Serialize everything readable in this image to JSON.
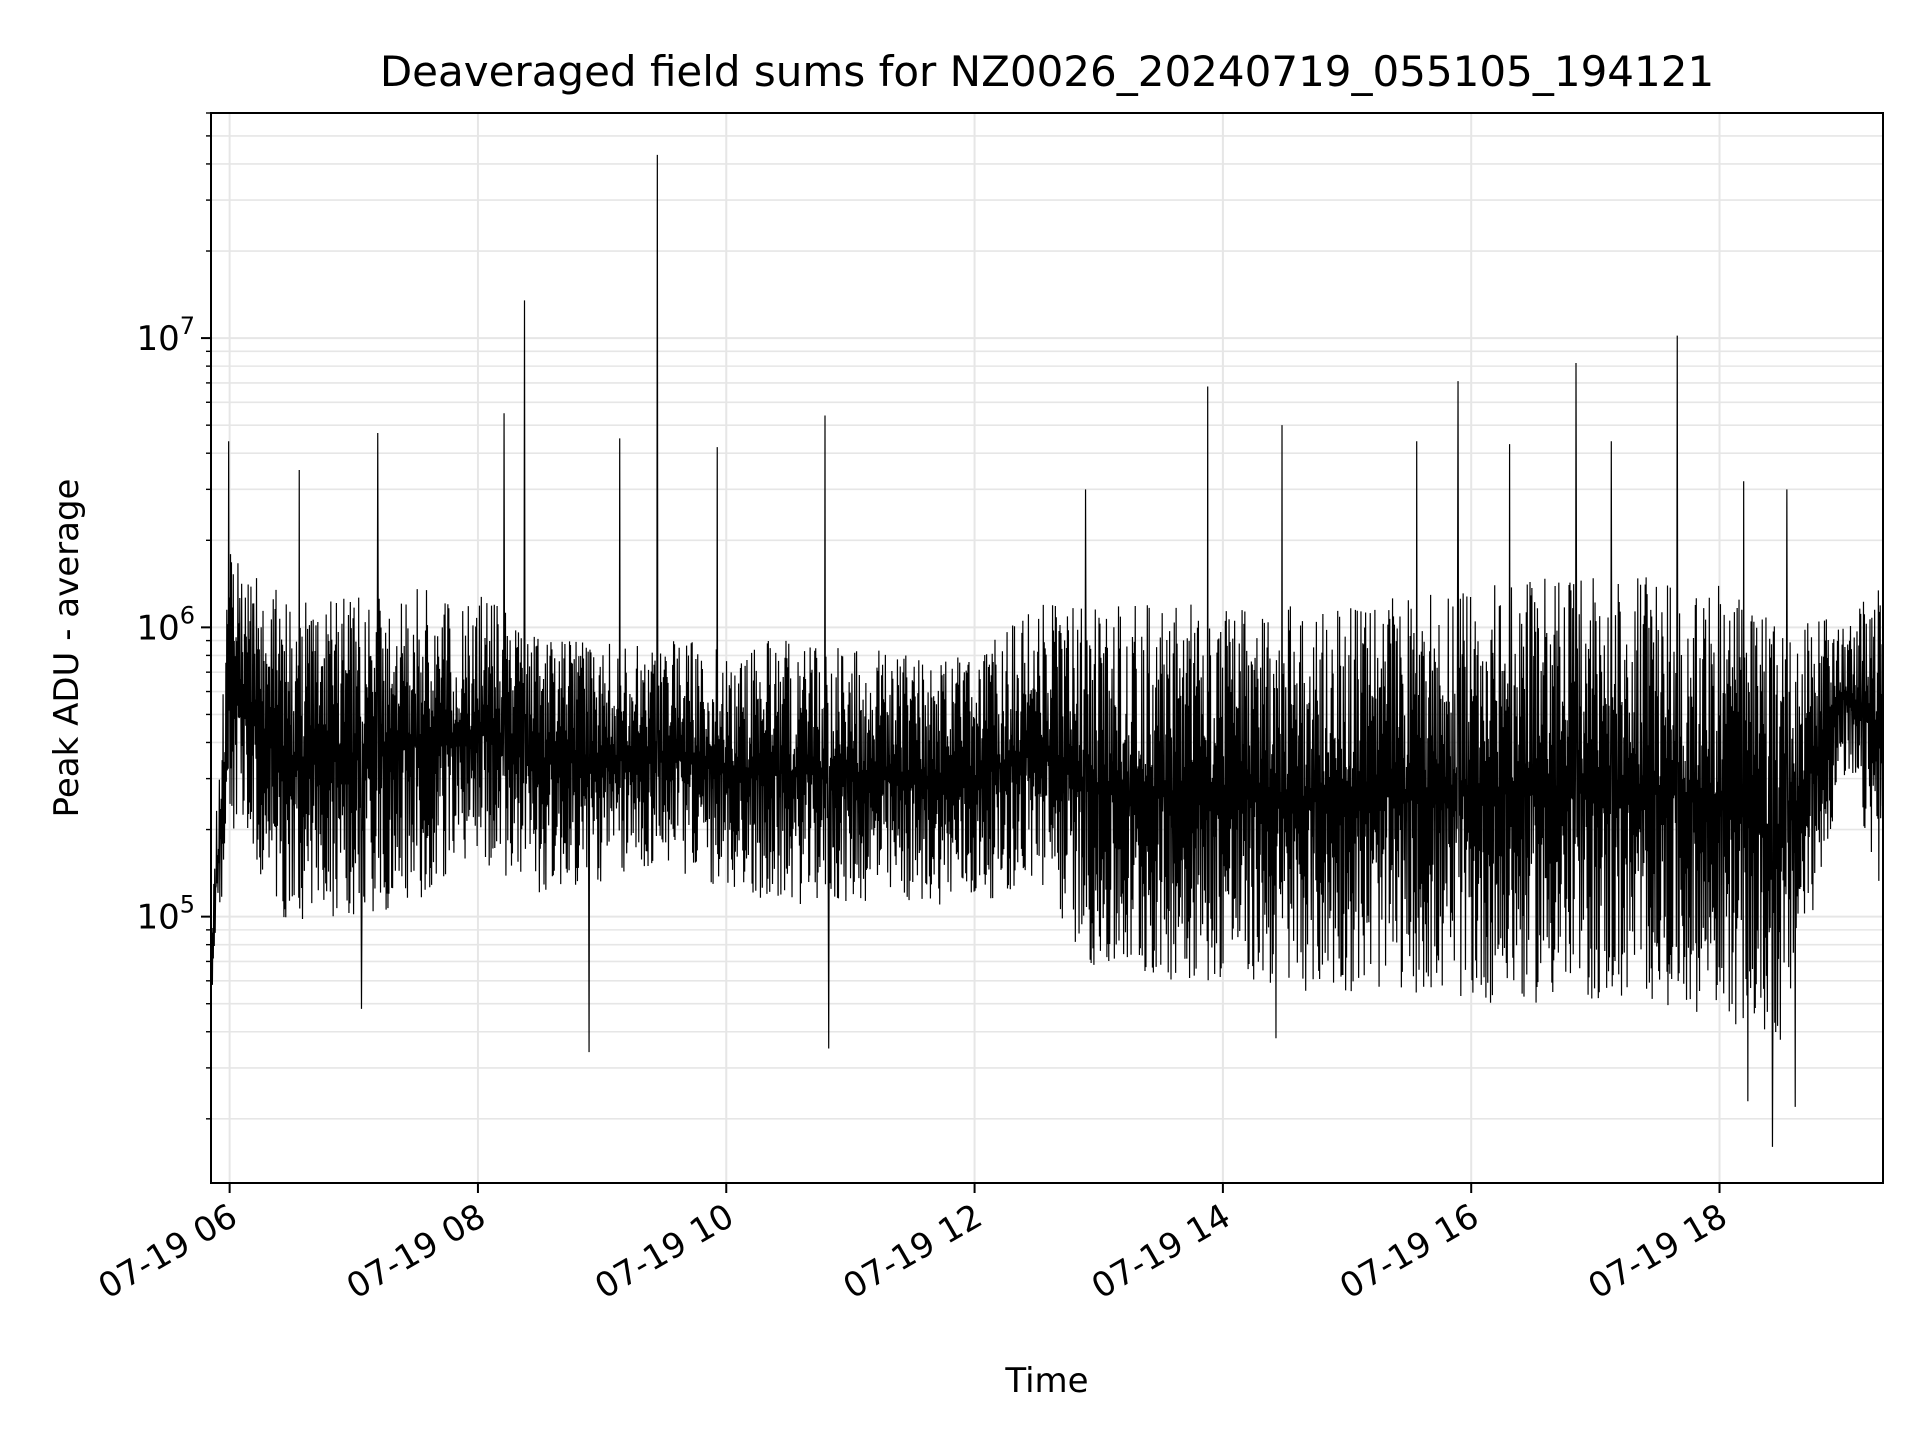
{
  "chart_data": {
    "type": "line",
    "title": "Deaveraged field sums for NZ0026_20240719_055105_194121",
    "xlabel": "Time",
    "ylabel": "Peak ADU - average",
    "yscale": "log",
    "ylim": [
      12000,
      60000000
    ],
    "xlim": [
      "2024-07-19 05:51",
      "2024-07-19 19:19"
    ],
    "grid": true,
    "line_color": "#000000",
    "x_ticks": [
      "07-19 06",
      "07-19 08",
      "07-19 10",
      "07-19 12",
      "07-19 14",
      "07-19 16",
      "07-19 18"
    ],
    "x_tick_values": [
      "2024-07-19 06:00",
      "2024-07-19 08:00",
      "2024-07-19 10:00",
      "2024-07-19 12:00",
      "2024-07-19 14:00",
      "2024-07-19 16:00",
      "2024-07-19 18:00"
    ],
    "y_ticks": [
      {
        "base": "10",
        "exp": "5",
        "value": 100000
      },
      {
        "base": "10",
        "exp": "6",
        "value": 1000000
      },
      {
        "base": "10",
        "exp": "7",
        "value": 10000000
      }
    ],
    "band_profile": {
      "x": [
        "2024-07-19 05:51",
        "2024-07-19 06:00",
        "2024-07-19 06:30",
        "2024-07-19 07:00",
        "2024-07-19 07:30",
        "2024-07-19 08:00",
        "2024-07-19 08:30",
        "2024-07-19 09:00",
        "2024-07-19 09:30",
        "2024-07-19 10:00",
        "2024-07-19 10:30",
        "2024-07-19 11:00",
        "2024-07-19 11:30",
        "2024-07-19 12:00",
        "2024-07-19 12:30",
        "2024-07-19 13:00",
        "2024-07-19 13:30",
        "2024-07-19 14:00",
        "2024-07-19 14:30",
        "2024-07-19 15:00",
        "2024-07-19 15:30",
        "2024-07-19 16:00",
        "2024-07-19 16:30",
        "2024-07-19 17:00",
        "2024-07-19 17:30",
        "2024-07-19 18:00",
        "2024-07-19 18:30",
        "2024-07-19 19:00",
        "2024-07-19 19:19"
      ],
      "low": [
        50000,
        200000,
        90000,
        100000,
        110000,
        150000,
        120000,
        130000,
        150000,
        120000,
        110000,
        110000,
        110000,
        110000,
        130000,
        60000,
        60000,
        60000,
        55000,
        55000,
        55000,
        50000,
        50000,
        50000,
        50000,
        45000,
        35000,
        300000,
        120000
      ],
      "high": [
        100000,
        2000000,
        1200000,
        1300000,
        1400000,
        1300000,
        1000000,
        900000,
        900000,
        900000,
        900000,
        900000,
        800000,
        800000,
        1200000,
        1200000,
        1200000,
        1200000,
        1200000,
        1200000,
        1300000,
        1400000,
        1500000,
        1500000,
        1500000,
        1400000,
        1000000,
        1100000,
        1600000
      ]
    },
    "spikes": [
      {
        "x": "2024-07-19 06:00",
        "y": 4400000
      },
      {
        "x": "2024-07-19 06:34",
        "y": 3500000
      },
      {
        "x": "2024-07-19 07:12",
        "y": 4700000
      },
      {
        "x": "2024-07-19 08:13",
        "y": 5500000
      },
      {
        "x": "2024-07-19 08:23",
        "y": 13500000
      },
      {
        "x": "2024-07-19 09:09",
        "y": 4500000
      },
      {
        "x": "2024-07-19 09:27",
        "y": 43000000
      },
      {
        "x": "2024-07-19 09:56",
        "y": 4200000
      },
      {
        "x": "2024-07-19 10:48",
        "y": 5400000
      },
      {
        "x": "2024-07-19 12:54",
        "y": 3000000
      },
      {
        "x": "2024-07-19 13:53",
        "y": 6800000
      },
      {
        "x": "2024-07-19 14:29",
        "y": 5000000
      },
      {
        "x": "2024-07-19 15:34",
        "y": 4400000
      },
      {
        "x": "2024-07-19 15:54",
        "y": 7100000
      },
      {
        "x": "2024-07-19 16:19",
        "y": 4300000
      },
      {
        "x": "2024-07-19 16:51",
        "y": 8200000
      },
      {
        "x": "2024-07-19 17:08",
        "y": 4400000
      },
      {
        "x": "2024-07-19 17:40",
        "y": 10200000
      },
      {
        "x": "2024-07-19 18:12",
        "y": 3200000
      },
      {
        "x": "2024-07-19 18:33",
        "y": 3000000
      }
    ],
    "dips": [
      {
        "x": "2024-07-19 07:04",
        "y": 48000
      },
      {
        "x": "2024-07-19 08:54",
        "y": 34000
      },
      {
        "x": "2024-07-19 10:50",
        "y": 35000
      },
      {
        "x": "2024-07-19 14:26",
        "y": 38000
      },
      {
        "x": "2024-07-19 18:14",
        "y": 23000
      },
      {
        "x": "2024-07-19 18:26",
        "y": 16000
      },
      {
        "x": "2024-07-19 18:37",
        "y": 22000
      }
    ]
  }
}
